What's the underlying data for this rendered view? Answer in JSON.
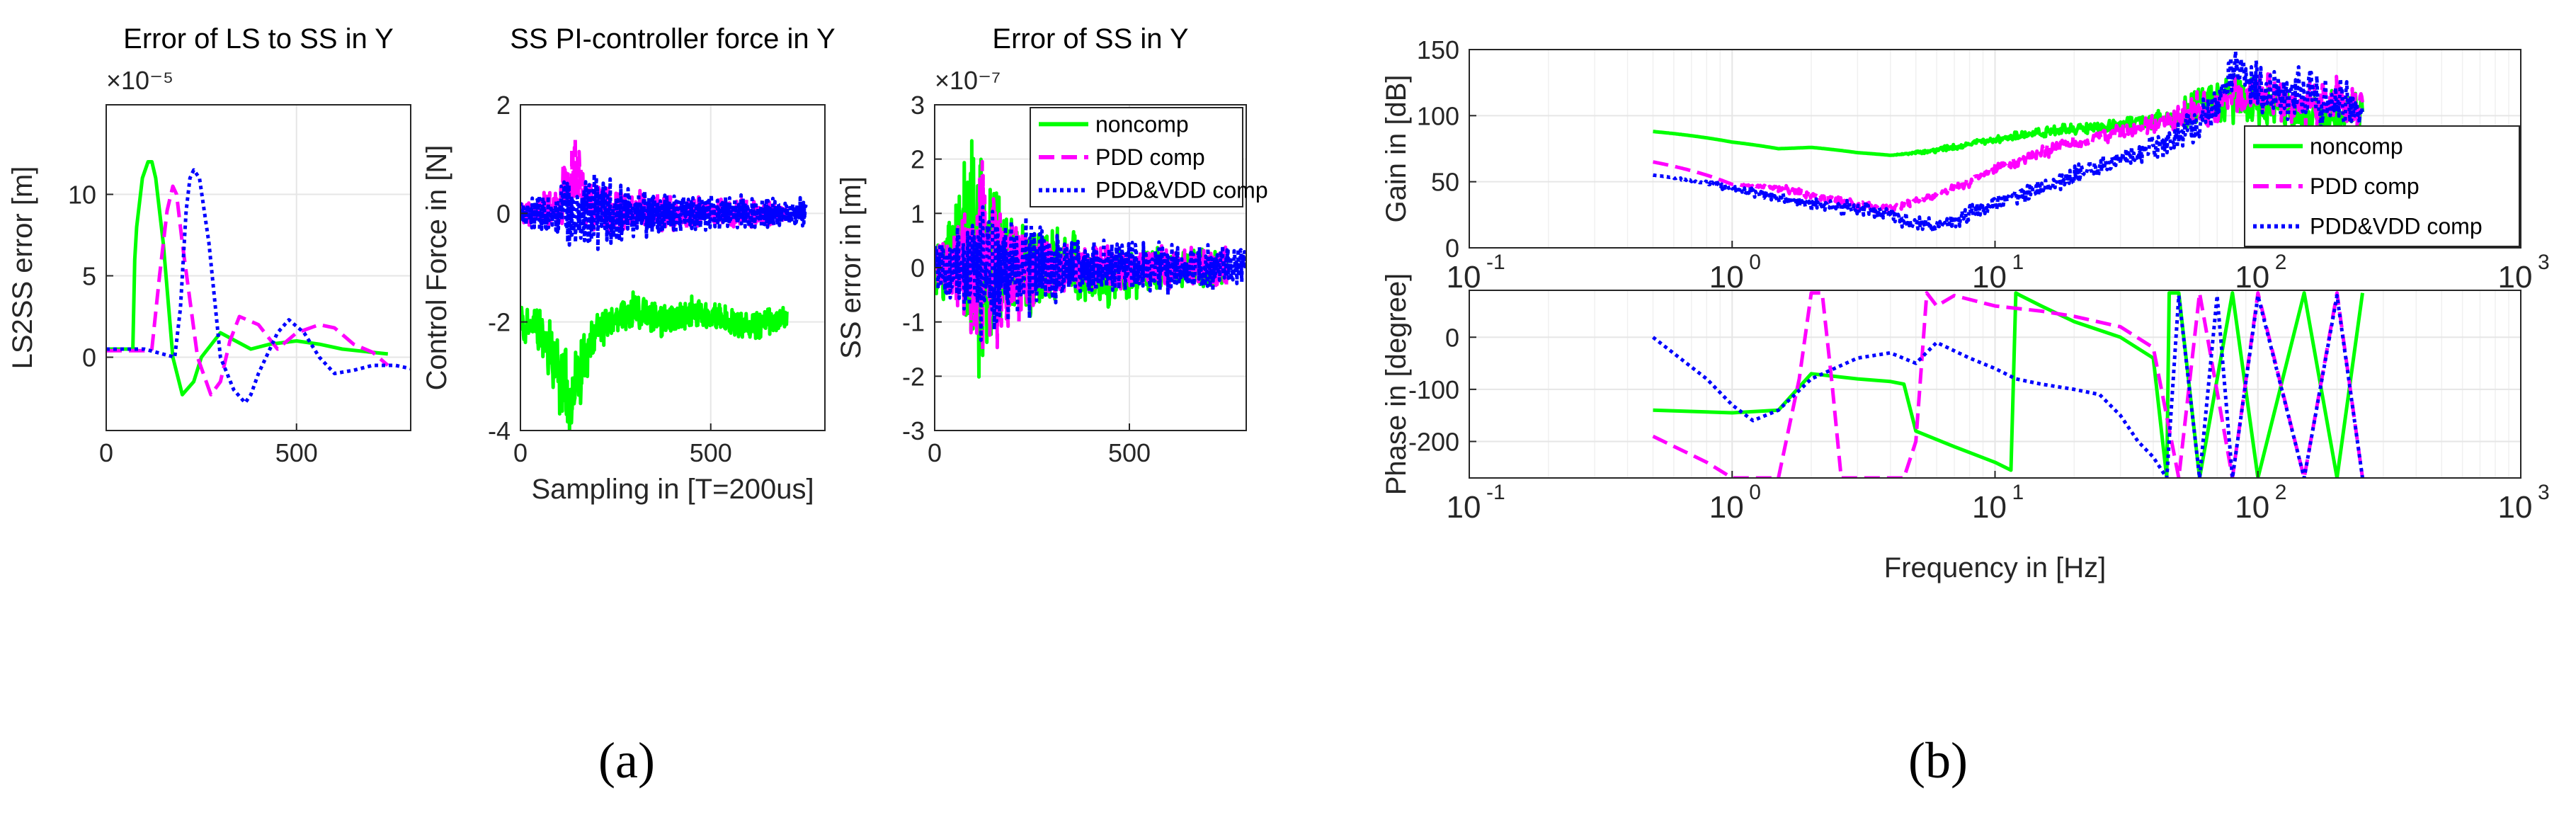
{
  "panel_labels": [
    "(a)",
    "(b)"
  ],
  "series_styles": [
    {
      "name": "noncomp",
      "color": "#00ff00",
      "dash": ""
    },
    {
      "name": "PDD comp",
      "color": "#ff00ff",
      "dash": "22,10"
    },
    {
      "name": "PDD&VDD comp",
      "color": "#0000ff",
      "dash": "5,5"
    }
  ],
  "chart_data": [
    {
      "type": "line",
      "title": "Error of LS to SS in Y",
      "ylabel": "LS2SS error [m]",
      "xlabel": "",
      "exponent": "×10⁻⁵",
      "xlim": [
        0,
        800
      ],
      "ylim": [
        -4.5,
        15.5
      ],
      "xticks": [
        0,
        500
      ],
      "xtick_labels": [
        "0",
        "500"
      ],
      "yticks": [
        0,
        5,
        10
      ],
      "ytick_labels": [
        "0",
        "5",
        "10"
      ],
      "legend": null,
      "series": [
        {
          "name": "noncomp",
          "x": [
            0,
            60,
            70,
            75,
            80,
            95,
            110,
            120,
            130,
            150,
            175,
            200,
            230,
            250,
            300,
            340,
            380,
            430,
            500,
            560,
            620,
            700,
            740
          ],
          "values": [
            0.5,
            0.5,
            0.5,
            6,
            8,
            11,
            12,
            12,
            11,
            7,
            0,
            -2.3,
            -1.5,
            0,
            1.5,
            1,
            0.5,
            0.8,
            1,
            0.8,
            0.5,
            0.3,
            0.2
          ]
        },
        {
          "name": "PDD comp",
          "x": [
            0,
            100,
            120,
            140,
            160,
            175,
            185,
            200,
            240,
            275,
            300,
            325,
            350,
            400,
            450,
            500,
            560,
            600,
            650,
            700,
            740
          ],
          "values": [
            0.4,
            0.4,
            0.5,
            5,
            9,
            10.5,
            10,
            7,
            0,
            -2.3,
            -1.5,
            1,
            2.5,
            2,
            0.5,
            1.5,
            2,
            1.8,
            0.8,
            0.3,
            -0.5
          ]
        },
        {
          "name": "PDD&VDD comp",
          "x": [
            0,
            100,
            180,
            195,
            210,
            220,
            230,
            245,
            270,
            300,
            335,
            365,
            380,
            400,
            450,
            480,
            520,
            560,
            600,
            650,
            700,
            760,
            800
          ],
          "values": [
            0.5,
            0.5,
            0,
            3,
            9,
            11,
            11.5,
            11,
            7,
            0,
            -2,
            -2.8,
            -2.3,
            -1,
            1.5,
            2.3,
            1.5,
            0,
            -1,
            -0.8,
            -0.5,
            -0.5,
            -0.7
          ]
        }
      ]
    },
    {
      "type": "line",
      "title": "SS PI-controller force in Y",
      "ylabel": "Control Force in [N]",
      "xlabel": "Sampling in [T=200us]",
      "exponent": "",
      "xlim": [
        0,
        800
      ],
      "ylim": [
        -4,
        2
      ],
      "xticks": [
        0,
        500
      ],
      "xtick_labels": [
        "0",
        "500"
      ],
      "yticks": [
        -4,
        -2,
        0,
        2
      ],
      "ytick_labels": [
        "-4",
        "-2",
        "0",
        "2"
      ],
      "legend": null,
      "series": [
        {
          "name": "noncomp",
          "x": [
            0,
            40,
            80,
            110,
            130,
            150,
            170,
            200,
            250,
            300,
            350,
            400,
            450,
            500,
            550,
            600,
            650,
            700
          ],
          "values": [
            -2,
            -2.1,
            -2.5,
            -3,
            -3.5,
            -3.2,
            -2.6,
            -2.2,
            -1.9,
            -1.8,
            -1.9,
            -2,
            -1.8,
            -1.9,
            -2,
            -2.1,
            -2,
            -1.9
          ],
          "noise": [
            0.3,
            0.3,
            0.5,
            0.7,
            0.6,
            0.5,
            0.4,
            0.3,
            0.25,
            0.25,
            0.25,
            0.25,
            0.2,
            0.2,
            0.2,
            0.2,
            0.2,
            0.2
          ]
        },
        {
          "name": "PDD comp",
          "x": [
            0,
            100,
            130,
            150,
            170,
            200,
            300,
            400,
            500,
            600,
            700
          ],
          "values": [
            0,
            0.1,
            0.6,
            0.8,
            0.3,
            0.1,
            0.05,
            0,
            0,
            0,
            0
          ],
          "noise": [
            0.15,
            0.3,
            0.6,
            0.5,
            0.4,
            0.35,
            0.3,
            0.25,
            0.2,
            0.2,
            0.15
          ]
        },
        {
          "name": "PDD&VDD comp",
          "x": [
            0,
            100,
            150,
            200,
            250,
            300,
            400,
            500,
            600,
            700,
            750
          ],
          "values": [
            0,
            0,
            0,
            0.1,
            0,
            0,
            0,
            0,
            0,
            0,
            0
          ],
          "noise": [
            0.2,
            0.4,
            0.5,
            0.6,
            0.45,
            0.35,
            0.3,
            0.25,
            0.25,
            0.2,
            0.2
          ]
        }
      ]
    },
    {
      "type": "line",
      "title": "Error of SS in Y",
      "ylabel": "SS error in [m]",
      "xlabel": "",
      "exponent": "×10⁻⁷",
      "xlim": [
        0,
        800
      ],
      "ylim": [
        -3,
        3
      ],
      "xticks": [
        0,
        500
      ],
      "xtick_labels": [
        "0",
        "500"
      ],
      "yticks": [
        -3,
        -2,
        -1,
        0,
        1,
        2,
        3
      ],
      "ytick_labels": [
        "-3",
        "-2",
        "-1",
        "0",
        "1",
        "2",
        "3"
      ],
      "legend": "top-right",
      "series": [
        {
          "name": "noncomp",
          "x": [
            0,
            50,
            80,
            110,
            130,
            150,
            170,
            200,
            250,
            300,
            350,
            400,
            500,
            600,
            700,
            750
          ],
          "values": [
            0,
            0.3,
            0.5,
            0.6,
            0.5,
            0.2,
            0,
            0,
            -0.1,
            0,
            0.2,
            -0.2,
            -0.1,
            0,
            0,
            0
          ],
          "noise": [
            0.4,
            0.7,
            1.5,
            2.0,
            1.8,
            1.4,
            1.0,
            0.8,
            0.6,
            0.5,
            0.45,
            0.45,
            0.35,
            0.3,
            0.25,
            0.25
          ]
        },
        {
          "name": "PDD comp",
          "x": [
            0,
            80,
            120,
            150,
            200,
            250,
            300,
            400,
            500,
            600,
            700,
            750
          ],
          "values": [
            0,
            0,
            0,
            0,
            0,
            0,
            0,
            0,
            0,
            0,
            0,
            0
          ],
          "noise": [
            0.3,
            0.8,
            1.4,
            1.2,
            0.8,
            0.5,
            0.4,
            0.35,
            0.3,
            0.3,
            0.3,
            0.3
          ]
        },
        {
          "name": "PDD&VDD comp",
          "x": [
            0,
            80,
            120,
            160,
            200,
            250,
            300,
            400,
            500,
            600,
            700,
            800
          ],
          "values": [
            0,
            0,
            0,
            0,
            0,
            0,
            0,
            0,
            0,
            0,
            0,
            0
          ],
          "noise": [
            0.35,
            0.7,
            1.0,
            1.0,
            0.8,
            0.6,
            0.5,
            0.4,
            0.35,
            0.35,
            0.3,
            0.3
          ]
        }
      ]
    },
    {
      "type": "line",
      "title": "",
      "ylabel": "Gain in [dB]",
      "xlabel": "",
      "exponent": "",
      "xscale": "log",
      "xlim": [
        0.1,
        1000
      ],
      "ylim": [
        0,
        150
      ],
      "xticks": [
        0.1,
        1,
        10,
        100,
        1000
      ],
      "xtick_labels": [
        {
          "base": "10",
          "exp": "-1"
        },
        {
          "base": "10",
          "exp": "0"
        },
        {
          "base": "10",
          "exp": "1"
        },
        {
          "base": "10",
          "exp": "2"
        },
        {
          "base": "10",
          "exp": "3"
        }
      ],
      "yticks": [
        0,
        50,
        100,
        150
      ],
      "ytick_labels": [
        "0",
        "50",
        "100",
        "150"
      ],
      "legend": "right",
      "series": [
        {
          "name": "noncomp",
          "x": [
            0.5,
            1,
            1.5,
            2,
            3,
            4,
            5,
            7,
            10,
            15,
            20,
            30,
            40,
            50,
            60,
            80,
            100,
            150,
            200,
            250
          ],
          "values": [
            88,
            80,
            75,
            76,
            72,
            70,
            72,
            76,
            82,
            88,
            90,
            93,
            96,
            100,
            110,
            115,
            108,
            100,
            105,
            100
          ],
          "noise": [
            0,
            0,
            0,
            0,
            0,
            0,
            1,
            2,
            2,
            3,
            3,
            4,
            5,
            8,
            12,
            15,
            15,
            15,
            15,
            12
          ]
        },
        {
          "name": "PDD comp",
          "x": [
            0.5,
            0.8,
            1,
            1.5,
            2,
            3,
            4,
            5,
            7,
            10,
            15,
            20,
            30,
            40,
            50,
            60,
            80,
            100,
            150,
            200,
            250
          ],
          "values": [
            65,
            55,
            48,
            45,
            40,
            32,
            30,
            35,
            45,
            60,
            72,
            80,
            88,
            93,
            100,
            105,
            110,
            115,
            110,
            110,
            108
          ],
          "noise": [
            0,
            0,
            0,
            2,
            3,
            3,
            2,
            2,
            3,
            3,
            4,
            4,
            5,
            6,
            8,
            12,
            15,
            15,
            15,
            15,
            12
          ]
        },
        {
          "name": "PDD&VDD comp",
          "x": [
            0.5,
            1,
            1.5,
            2,
            3,
            4,
            5,
            6,
            8,
            10,
            15,
            20,
            30,
            40,
            50,
            60,
            70,
            80,
            100,
            150,
            200,
            250
          ],
          "values": [
            55,
            45,
            38,
            33,
            30,
            25,
            18,
            15,
            25,
            35,
            45,
            55,
            68,
            75,
            85,
            95,
            110,
            135,
            120,
            115,
            110,
            105
          ],
          "noise": [
            0,
            2,
            3,
            4,
            4,
            4,
            5,
            5,
            5,
            5,
            5,
            6,
            6,
            8,
            10,
            12,
            12,
            12,
            15,
            15,
            15,
            12
          ]
        }
      ]
    },
    {
      "type": "line",
      "title": "",
      "ylabel": "Phase in [degree]",
      "xlabel": "Frequency in [Hz]",
      "exponent": "",
      "xscale": "log",
      "xlim": [
        0.1,
        1000
      ],
      "ylim": [
        -270,
        90
      ],
      "xticks": [
        0.1,
        1,
        10,
        100,
        1000
      ],
      "xtick_labels": [
        {
          "base": "10",
          "exp": "-1"
        },
        {
          "base": "10",
          "exp": "0"
        },
        {
          "base": "10",
          "exp": "1"
        },
        {
          "base": "10",
          "exp": "2"
        },
        {
          "base": "10",
          "exp": "3"
        }
      ],
      "yticks": [
        -200,
        -100,
        0
      ],
      "ytick_labels": [
        "-200",
        "-100",
        "0"
      ],
      "legend": null,
      "series": [
        {
          "name": "noncomp",
          "x": [
            0.5,
            1,
            1.5,
            2,
            3,
            4,
            4.5,
            5,
            7,
            10,
            11.5,
            12,
            12.5,
            15,
            20,
            30,
            40,
            45,
            46,
            50,
            60,
            80,
            100,
            150,
            200,
            250
          ],
          "values": [
            -140,
            -145,
            -140,
            -70,
            -80,
            -85,
            -90,
            -180,
            -210,
            -240,
            -255,
            85,
            80,
            60,
            30,
            0,
            -40,
            -270,
            85,
            85,
            -270,
            85,
            -270,
            85,
            -270,
            85
          ]
        },
        {
          "name": "PDD comp",
          "x": [
            0.5,
            0.8,
            1,
            1.2,
            1.5,
            1.8,
            2,
            2.2,
            2.4,
            2.6,
            3,
            3.5,
            4.5,
            5,
            5.5,
            6,
            7,
            10,
            15,
            20,
            30,
            40,
            50,
            60,
            80,
            100,
            150,
            200,
            250
          ],
          "values": [
            -190,
            -240,
            -270,
            -270,
            -270,
            -80,
            85,
            85,
            -90,
            -270,
            -270,
            -270,
            -270,
            -200,
            85,
            60,
            80,
            60,
            50,
            40,
            20,
            -20,
            -270,
            85,
            -270,
            85,
            -270,
            85,
            -270
          ]
        },
        {
          "name": "PDD&VDD comp",
          "x": [
            0.5,
            0.8,
            1,
            1.2,
            1.5,
            2,
            3,
            4,
            5,
            6,
            8,
            10,
            12,
            15,
            20,
            25,
            30,
            35,
            40,
            45,
            50,
            60,
            70,
            80,
            100,
            150,
            200,
            250
          ],
          "values": [
            0,
            -80,
            -130,
            -160,
            -140,
            -80,
            -40,
            -30,
            -50,
            -10,
            -40,
            -60,
            -80,
            -90,
            -100,
            -110,
            -150,
            -200,
            -230,
            -270,
            80,
            -270,
            80,
            -270,
            80,
            -270,
            80,
            -270
          ]
        }
      ]
    }
  ]
}
